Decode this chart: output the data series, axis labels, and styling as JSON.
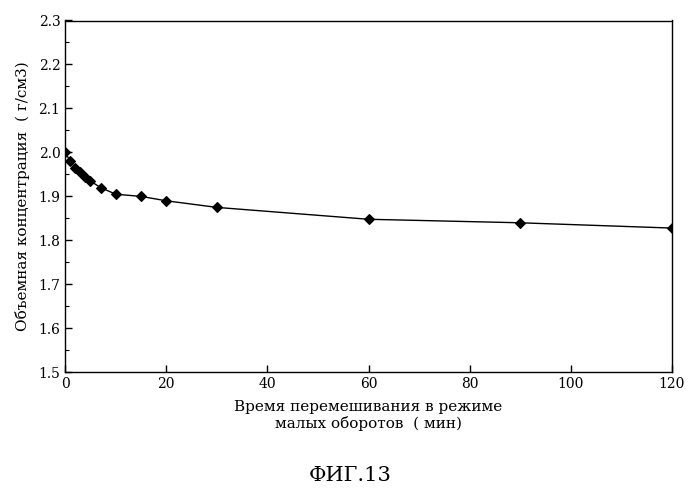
{
  "x": [
    0,
    1,
    2,
    3,
    4,
    5,
    7,
    10,
    15,
    20,
    30,
    60,
    90,
    120
  ],
  "y": [
    2.0,
    1.98,
    1.965,
    1.955,
    1.945,
    1.935,
    1.92,
    1.905,
    1.9,
    1.89,
    1.875,
    1.848,
    1.84,
    1.828
  ],
  "xlabel_line1": "Время перемешивания в режиме",
  "xlabel_line2": "малых оборотов  ( мин)",
  "ylabel": "Объемная концентрация  ( г/см3)",
  "figure_label": "ФИГ.13",
  "xlim": [
    0,
    120
  ],
  "ylim": [
    1.5,
    2.3
  ],
  "xticks": [
    0,
    20,
    40,
    60,
    80,
    100,
    120
  ],
  "yticks": [
    1.5,
    1.6,
    1.7,
    1.8,
    1.9,
    2.0,
    2.1,
    2.2,
    2.3
  ],
  "line_color": "#000000",
  "marker_color": "#000000",
  "bg_color": "#ffffff",
  "font_family": "DejaVu Serif",
  "tick_fontsize": 10,
  "label_fontsize": 11,
  "fig_label_fontsize": 15
}
